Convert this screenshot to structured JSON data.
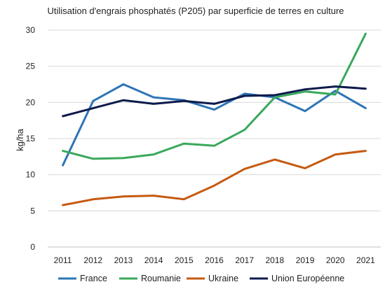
{
  "chart_data": {
    "type": "line",
    "title": "Utilisation d'engrais phosphatés (P205) par superficie de terres en culture",
    "xlabel": "",
    "ylabel": "kg/ha",
    "x": [
      2011,
      2012,
      2013,
      2014,
      2015,
      2016,
      2017,
      2018,
      2019,
      2020,
      2021
    ],
    "x_tick_labels": [
      "2011",
      "2012",
      "2013",
      "2014",
      "2015",
      "2016",
      "2017",
      "2018",
      "2019",
      "2020",
      "2021"
    ],
    "ylim": [
      0,
      30
    ],
    "y_ticks": [
      0,
      5,
      10,
      15,
      20,
      25,
      30
    ],
    "y_tick_labels": [
      "0",
      "5",
      "10",
      "15",
      "20",
      "25",
      "30"
    ],
    "grid": true,
    "legend_position": "bottom",
    "series": [
      {
        "name": "France",
        "color": "#2e75b6",
        "values": [
          11.3,
          20.2,
          22.5,
          20.7,
          20.3,
          19.0,
          21.2,
          20.7,
          18.8,
          21.6,
          19.2
        ]
      },
      {
        "name": "Roumanie",
        "color": "#3aa85b",
        "values": [
          13.3,
          12.2,
          12.3,
          12.8,
          14.3,
          14.0,
          16.2,
          20.7,
          21.5,
          21.1,
          29.5
        ]
      },
      {
        "name": "Ukraine",
        "color": "#c55a11",
        "values": [
          5.8,
          6.6,
          7.0,
          7.1,
          6.6,
          8.5,
          10.8,
          12.1,
          10.9,
          12.8,
          13.3
        ]
      },
      {
        "name": "Union Européenne",
        "color": "#0d1b4c",
        "values": [
          18.1,
          19.2,
          20.3,
          19.8,
          20.2,
          19.8,
          20.9,
          21.0,
          21.8,
          22.2,
          21.9
        ]
      }
    ]
  }
}
